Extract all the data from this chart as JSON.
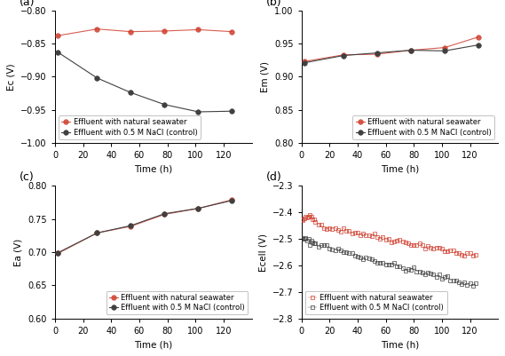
{
  "time_sparse": [
    2,
    30,
    54,
    78,
    102,
    126
  ],
  "time_dense": [
    0.5,
    1,
    2,
    3,
    4,
    5,
    6,
    7,
    8,
    9,
    10,
    12,
    14,
    16,
    18,
    20,
    22,
    24,
    26,
    28,
    30,
    32,
    34,
    36,
    38,
    40,
    42,
    44,
    46,
    48,
    50,
    52,
    54,
    56,
    58,
    60,
    62,
    64,
    66,
    68,
    70,
    72,
    74,
    76,
    78,
    80,
    82,
    84,
    86,
    88,
    90,
    92,
    94,
    96,
    98,
    100,
    102,
    104,
    106,
    108,
    110,
    112,
    114,
    116,
    118,
    120,
    122,
    124
  ],
  "panel_a": {
    "label": "(a)",
    "ylabel": "Ec (V)",
    "ylim": [
      -1.0,
      -0.8
    ],
    "yticks": [
      -1.0,
      -0.95,
      -0.9,
      -0.85,
      -0.8
    ],
    "red": [
      -0.838,
      -0.828,
      -0.832,
      -0.831,
      -0.829,
      -0.832
    ],
    "black": [
      -0.863,
      -0.902,
      -0.924,
      -0.942,
      -0.953,
      -0.952
    ],
    "legend_loc": "lower left"
  },
  "panel_b": {
    "label": "(b)",
    "ylabel": "Em (V)",
    "ylim": [
      0.8,
      1.0
    ],
    "yticks": [
      0.8,
      0.85,
      0.9,
      0.95,
      1.0
    ],
    "red": [
      0.923,
      0.933,
      0.934,
      0.94,
      0.944,
      0.96
    ],
    "black": [
      0.921,
      0.932,
      0.936,
      0.94,
      0.939,
      0.948
    ],
    "legend_loc": "lower right"
  },
  "panel_c": {
    "label": "(c)",
    "ylabel": "Ea (V)",
    "ylim": [
      0.6,
      0.8
    ],
    "yticks": [
      0.6,
      0.65,
      0.7,
      0.75,
      0.8
    ],
    "red": [
      0.698,
      0.729,
      0.739,
      0.757,
      0.766,
      0.779
    ],
    "black": [
      0.699,
      0.729,
      0.74,
      0.758,
      0.766,
      0.778
    ],
    "legend_loc": "lower right"
  },
  "panel_d": {
    "label": "(d)",
    "ylabel": "Ecell (V)",
    "ylim": [
      -2.8,
      -2.3
    ],
    "yticks": [
      -2.8,
      -2.7,
      -2.6,
      -2.5,
      -2.4,
      -2.3
    ],
    "red_start": -2.435,
    "red_end": -2.565,
    "red_mid_bump": 0.03,
    "black_start": -2.495,
    "black_end": -2.675,
    "legend_loc": "lower left"
  },
  "xlim": [
    0,
    140
  ],
  "xticks": [
    0,
    20,
    40,
    60,
    80,
    100,
    120
  ],
  "xlabel": "Time (h)",
  "legend_red": "Effluent with natural seawater",
  "legend_black": "Effluent with 0.5 M NaCl (control)",
  "red_color": "#d04030",
  "black_color": "#404040",
  "marker_size": 3,
  "marker_size_sparse": 4,
  "linewidth": 0.8,
  "fontsize_label": 7.5,
  "fontsize_tick": 7,
  "fontsize_legend": 6.0,
  "fontsize_panel_label": 9
}
